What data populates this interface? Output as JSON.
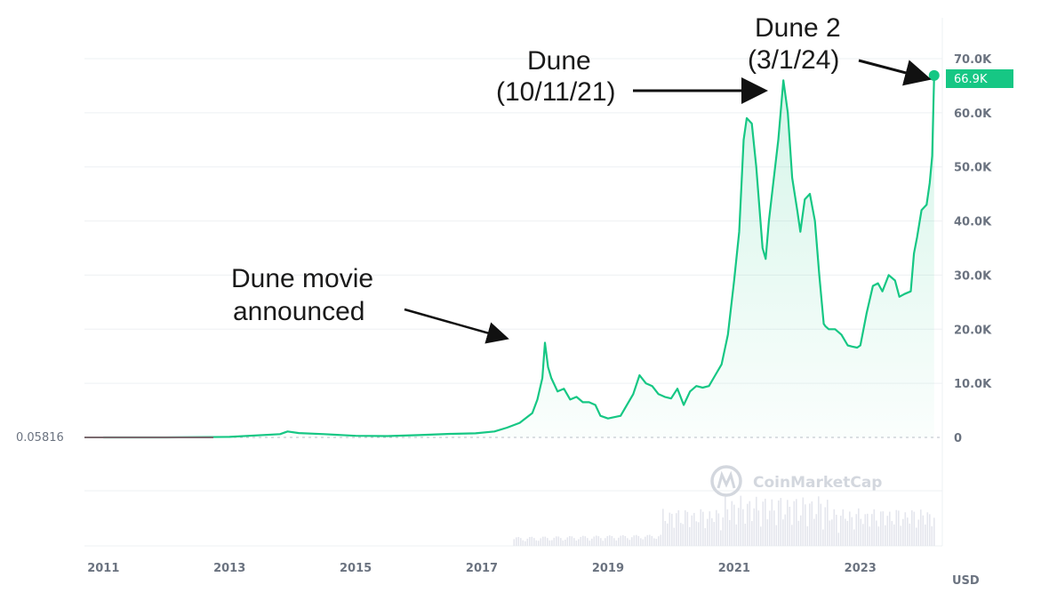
{
  "chart_data": {
    "type": "area",
    "currency": "USD",
    "x_ticks": [
      "2011",
      "2013",
      "2015",
      "2017",
      "2019",
      "2021",
      "2023"
    ],
    "x_range": [
      2010.7,
      2024.3
    ],
    "y_ticks": [
      "0",
      "10.0K",
      "20.0K",
      "30.0K",
      "40.0K",
      "50.0K",
      "60.0K",
      "70.0K"
    ],
    "y_tick_values": [
      0,
      10000,
      20000,
      30000,
      40000,
      50000,
      60000,
      70000
    ],
    "ylim": [
      0,
      70000
    ],
    "start_value_label": "0.05816",
    "last_price_label": "66.9K",
    "line_color": "#16c784",
    "watermark": "CoinMarketCap",
    "series": [
      {
        "x": [
          2011.0,
          2012.0,
          2013.0,
          2013.8,
          2013.92,
          2014.1,
          2014.5,
          2015.0,
          2015.5,
          2016.0,
          2016.5,
          2016.9,
          2017.2,
          2017.4,
          2017.6,
          2017.8,
          2017.88,
          2017.96,
          2018.0,
          2018.05,
          2018.1,
          2018.2,
          2018.3,
          2018.4,
          2018.5,
          2018.6,
          2018.7,
          2018.8,
          2018.88,
          2019.0,
          2019.2,
          2019.4,
          2019.5,
          2019.6,
          2019.7,
          2019.8,
          2019.9,
          2020.0,
          2020.1,
          2020.2,
          2020.3,
          2020.4,
          2020.5,
          2020.6,
          2020.7,
          2020.8,
          2020.9,
          2021.0,
          2021.08,
          2021.15,
          2021.2,
          2021.28,
          2021.35,
          2021.45,
          2021.5,
          2021.55,
          2021.62,
          2021.7,
          2021.78,
          2021.85,
          2021.92,
          2022.0,
          2022.05,
          2022.12,
          2022.2,
          2022.28,
          2022.35,
          2022.42,
          2022.45,
          2022.5,
          2022.6,
          2022.7,
          2022.8,
          2022.87,
          2022.95,
          2023.0,
          2023.1,
          2023.2,
          2023.28,
          2023.35,
          2023.45,
          2023.55,
          2023.62,
          2023.7,
          2023.8,
          2023.85,
          2023.9,
          2023.97,
          2024.05,
          2024.1,
          2024.14,
          2024.17
        ],
        "y": [
          0,
          0,
          100,
          600,
          1100,
          800,
          600,
          300,
          250,
          430,
          650,
          750,
          1100,
          1800,
          2700,
          4500,
          7000,
          11000,
          17500,
          13000,
          11000,
          8500,
          9000,
          7000,
          7500,
          6500,
          6500,
          6000,
          4000,
          3500,
          4000,
          8000,
          11500,
          10000,
          9500,
          8000,
          7500,
          7200,
          9000,
          6000,
          8500,
          9500,
          9200,
          9500,
          11500,
          13500,
          19000,
          29000,
          38000,
          55000,
          59000,
          58000,
          50000,
          35000,
          33000,
          40000,
          47000,
          55000,
          66000,
          60000,
          48000,
          42000,
          38000,
          44000,
          45000,
          40000,
          30000,
          21000,
          20500,
          20000,
          20000,
          19000,
          17000,
          16800,
          16600,
          17000,
          23000,
          28000,
          28500,
          27000,
          30000,
          29000,
          26000,
          26500,
          27000,
          34000,
          37000,
          42000,
          43000,
          47000,
          52000,
          66900
        ]
      }
    ],
    "annotations": [
      {
        "lines": [
          "Dune movie",
          "announced"
        ]
      },
      {
        "lines": [
          "Dune",
          "(10/11/21)"
        ]
      },
      {
        "lines": [
          "Dune 2",
          "(3/1/24)"
        ]
      }
    ]
  }
}
